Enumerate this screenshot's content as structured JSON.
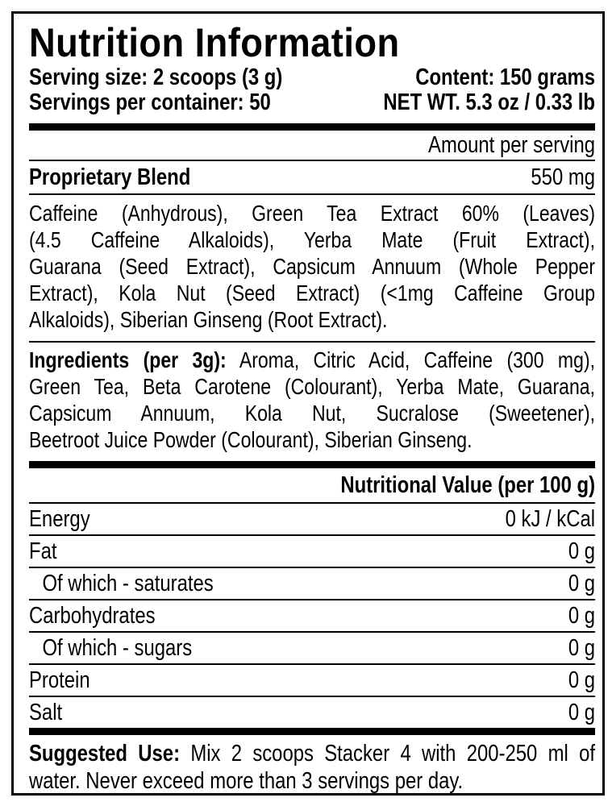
{
  "title": "Nutrition Information",
  "header": {
    "serving_size": "Serving size: 2 scoops (3 g)",
    "content": "Content: 150 grams",
    "servings_per_container": "Servings per container: 50",
    "net_wt": "NET WT. 5.3 oz / 0.33 lb"
  },
  "amount_per_serving": "Amount per serving",
  "blend": {
    "label": "Proprietary Blend",
    "amount": "550 mg",
    "lines": [
      "Caffeine (Anhydrous), Green Tea Extract 60% (Leaves)",
      "(4.5 Caffeine Alkaloids), Yerba Mate (Fruit Extract),",
      "Guarana (Seed Extract), Capsicum Annuum (Whole Pepper",
      "Extract), Kola Nut (Seed Extract) (<1mg Caffeine Group",
      "Alkaloids), Siberian Ginseng (Root Extract)."
    ]
  },
  "ingredients": {
    "label": "Ingredients (per 3g):",
    "lines": [
      " Aroma, Citric Acid, Caffeine (300 mg),",
      "Green Tea, Beta Carotene (Colourant), Yerba Mate, Guarana,",
      "Capsicum Annuum, Kola Nut, Sucralose (Sweetener),",
      "Beetroot Juice Powder (Colourant), Siberian Ginseng."
    ]
  },
  "nutrition": {
    "header": "Nutritional Value (per 100 g)",
    "rows": [
      {
        "label": "Energy",
        "value": "0 kJ / kCal"
      },
      {
        "label": "Fat",
        "value": "0 g"
      },
      {
        "label": "Of which - saturates",
        "value": "0 g"
      },
      {
        "label": "Carbohydrates",
        "value": "0 g"
      },
      {
        "label": "Of which - sugars",
        "value": "0 g"
      },
      {
        "label": "Protein",
        "value": "0 g"
      },
      {
        "label": "Salt",
        "value": "0 g"
      }
    ]
  },
  "suggested_use": {
    "label": "Suggested Use:",
    "line1": " Mix 2 scoops Stacker 4 with 200-250 ml of",
    "line2": "water. Never exceed more than 3 servings per day."
  }
}
